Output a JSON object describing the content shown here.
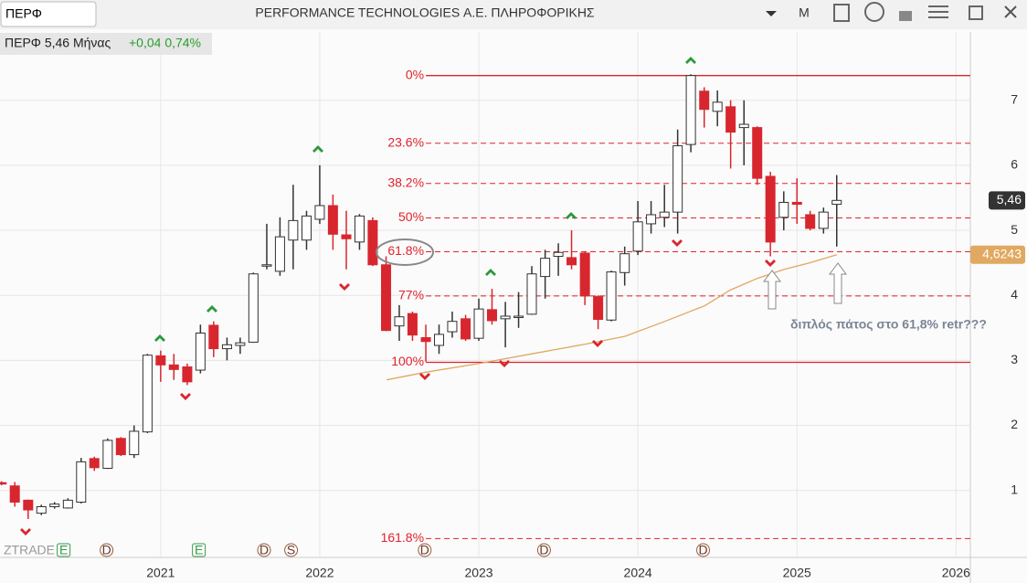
{
  "header": {
    "symbol": "ΠΕΡΦ",
    "title": "PERFORMANCE TECHNOLOGIES Α.Ε. ΠΛΗΡΟΦΟΡΙΚΗΣ",
    "period": "M"
  },
  "chart_data": {
    "type": "candlestick",
    "info": "ΠΕΡΦ 5,46 Μήνας",
    "change": "+0,04 0,74%",
    "watermark": "ZTRADE",
    "annotation": "διπλός πάτος στο 61,8% retr???",
    "xlim": [
      2019.99,
      2026.09
    ],
    "xticks": [
      2021,
      2022,
      2023,
      2024,
      2025,
      2026
    ],
    "ylim": [
      -0.03,
      8.05
    ],
    "yticks": [
      1,
      2,
      3,
      4,
      5,
      6,
      7
    ],
    "grid": true,
    "up_color": "#ffffff",
    "down_color": "#d8262e",
    "candles": {
      "x": [
        2020,
        2020.083,
        2020.167,
        2020.25,
        2020.333,
        2020.417,
        2020.5,
        2020.583,
        2020.667,
        2020.75,
        2020.833,
        2020.917,
        2021,
        2021.083,
        2021.167,
        2021.25,
        2021.333,
        2021.417,
        2021.5,
        2021.583,
        2021.667,
        2021.75,
        2021.833,
        2021.917,
        2022,
        2022.083,
        2022.167,
        2022.25,
        2022.333,
        2022.417,
        2022.5,
        2022.583,
        2022.667,
        2022.75,
        2022.833,
        2022.917,
        2023,
        2023.083,
        2023.167,
        2023.25,
        2023.333,
        2023.417,
        2023.5,
        2023.583,
        2023.667,
        2023.75,
        2023.833,
        2023.917,
        2024,
        2024.083,
        2024.167,
        2024.25,
        2024.333,
        2024.417,
        2024.5,
        2024.583,
        2024.667,
        2024.75,
        2024.833,
        2024.917,
        2025,
        2025.083,
        2025.167,
        2025.25
      ],
      "open": [
        1.12,
        1.07,
        0.85,
        0.65,
        0.75,
        0.73,
        0.82,
        1.49,
        1.34,
        1.8,
        1.55,
        1.9,
        3.07,
        2.93,
        2.9,
        2.85,
        3.54,
        3.18,
        3.23,
        3.28,
        4.45,
        4.37,
        4.85,
        4.85,
        5.17,
        5.38,
        4.93,
        4.82,
        5.15,
        4.47,
        3.53,
        3.72,
        3.35,
        3.23,
        3.44,
        3.64,
        3.34,
        3.78,
        3.64,
        3.66,
        3.71,
        4.29,
        4.6,
        4.58,
        4.65,
        3.98,
        3.62,
        4.35,
        4.68,
        5.1,
        5.2,
        5.28,
        6.32,
        7.14,
        6.83,
        6.9,
        6.58,
        6.58,
        5.83,
        5.2,
        5.43,
        5.24,
        5.03,
        5.4
      ],
      "high": [
        1.14,
        1.13,
        0.86,
        0.78,
        0.82,
        0.88,
        1.5,
        1.52,
        1.8,
        1.82,
        2.0,
        3.1,
        3.15,
        3.1,
        2.95,
        3.55,
        3.6,
        3.35,
        3.35,
        4.35,
        5.1,
        5.2,
        5.7,
        5.3,
        6.0,
        5.55,
        5.3,
        5.25,
        5.2,
        4.6,
        3.85,
        3.75,
        3.55,
        3.55,
        3.75,
        3.7,
        3.95,
        4.1,
        3.9,
        4.05,
        4.45,
        4.7,
        4.8,
        5.0,
        4.68,
        4.0,
        4.38,
        4.75,
        5.45,
        5.45,
        5.7,
        6.55,
        7.4,
        7.2,
        7.15,
        7.0,
        7.0,
        6.6,
        5.9,
        5.6,
        5.8,
        5.3,
        5.35,
        5.85
      ],
      "low": [
        1.08,
        0.75,
        0.56,
        0.62,
        0.72,
        0.72,
        0.8,
        1.3,
        1.33,
        1.53,
        1.5,
        1.88,
        2.67,
        2.7,
        2.62,
        2.8,
        3.05,
        3.0,
        3.1,
        3.27,
        4.4,
        4.3,
        4.4,
        4.7,
        5.1,
        4.7,
        4.4,
        4.7,
        4.45,
        3.45,
        3.3,
        3.3,
        2.98,
        3.1,
        3.35,
        3.3,
        3.3,
        3.55,
        3.2,
        3.5,
        3.7,
        3.95,
        4.3,
        4.4,
        3.85,
        3.48,
        3.6,
        4.15,
        4.62,
        4.95,
        5.05,
        4.95,
        6.2,
        6.58,
        6.6,
        5.95,
        6.0,
        5.7,
        4.6,
        5.0,
        5.1,
        5.0,
        4.95,
        4.75
      ],
      "close": [
        1.1,
        0.82,
        0.7,
        0.75,
        0.79,
        0.85,
        1.44,
        1.35,
        1.77,
        1.55,
        1.91,
        3.08,
        2.93,
        2.86,
        2.67,
        3.42,
        3.18,
        3.24,
        3.27,
        4.33,
        4.47,
        4.9,
        5.15,
        5.22,
        5.38,
        4.94,
        4.87,
        5.22,
        4.47,
        3.46,
        3.67,
        3.39,
        3.29,
        3.4,
        3.6,
        3.33,
        3.79,
        3.61,
        3.68,
        3.68,
        4.33,
        4.57,
        4.66,
        4.47,
        3.99,
        3.63,
        4.36,
        4.64,
        5.13,
        5.24,
        5.28,
        6.3,
        7.38,
        6.86,
        6.97,
        6.51,
        6.63,
        5.8,
        4.82,
        5.43,
        5.4,
        5.03,
        5.28,
        5.46
      ]
    },
    "last_price": {
      "value": 5.46,
      "label": "5,46"
    },
    "ma": {
      "color": "#e0a860",
      "x": [
        2022.42,
        2022.67,
        2023.0,
        2023.33,
        2023.67,
        2023.92,
        2024.17,
        2024.42,
        2024.58,
        2024.75,
        2024.92,
        2025.08,
        2025.25
      ],
      "values": [
        2.7,
        2.82,
        2.95,
        3.1,
        3.25,
        3.37,
        3.6,
        3.84,
        4.08,
        4.26,
        4.4,
        4.5,
        4.6243
      ],
      "last_label": "4,6243"
    },
    "fib": {
      "color": "#e0222c",
      "start": 2022.667,
      "levels": [
        {
          "value": 7.38,
          "label": "0%",
          "style": "solid"
        },
        {
          "value": 6.34,
          "label": "23.6%",
          "style": "dashed"
        },
        {
          "value": 5.72,
          "label": "38.2%",
          "style": "dashed"
        },
        {
          "value": 5.19,
          "label": "50%",
          "style": "dashed"
        },
        {
          "value": 4.67,
          "label": "61.8%",
          "style": "dashed"
        },
        {
          "value": 3.99,
          "label": "77%",
          "style": "dashed"
        },
        {
          "value": 2.97,
          "label": "100%",
          "style": "solid"
        },
        {
          "value": 0.26,
          "label": "161.8%",
          "style": "dashed"
        }
      ]
    },
    "events": {
      "x": [
        2020.39,
        2020.66,
        2021.24,
        2021.65,
        2021.82,
        2022.66,
        2023.41,
        2024.41
      ],
      "labels": [
        "E",
        "D",
        "E",
        "D",
        "S",
        "D",
        "D",
        "D"
      ]
    }
  }
}
